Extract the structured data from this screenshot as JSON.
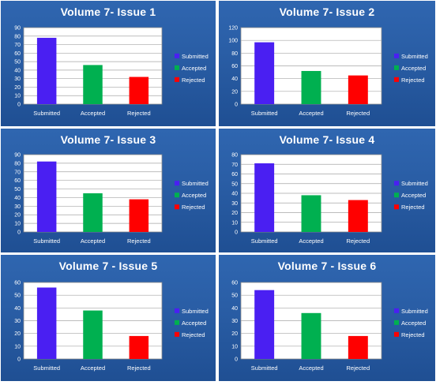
{
  "chart_data": [
    {
      "type": "bar",
      "title": "Volume 7- Issue 1",
      "categories": [
        "Submitted",
        "Accepted",
        "Rejected"
      ],
      "values": [
        78,
        46,
        32
      ],
      "ylim": [
        0,
        90
      ],
      "yticks": [
        0,
        10,
        20,
        30,
        40,
        50,
        60,
        70,
        80,
        90
      ],
      "colors": [
        "#4a1ff2",
        "#00b050",
        "#ff0000"
      ],
      "legend": [
        "Submitted",
        "Accepted",
        "Rejected"
      ],
      "legend_position": "right",
      "grid": true
    },
    {
      "type": "bar",
      "title": "Volume 7- Issue 2",
      "categories": [
        "Submitted",
        "Accepted",
        "Rejected"
      ],
      "values": [
        97,
        52,
        45
      ],
      "ylim": [
        0,
        120
      ],
      "yticks": [
        0,
        20,
        40,
        60,
        80,
        100,
        120
      ],
      "colors": [
        "#4a1ff2",
        "#00b050",
        "#ff0000"
      ],
      "legend": [
        "Submitted",
        "Accepted",
        "Rejected"
      ],
      "legend_position": "right",
      "grid": true
    },
    {
      "type": "bar",
      "title": "Volume 7- Issue 3",
      "categories": [
        "Submitted",
        "Accepted",
        "Rejected"
      ],
      "values": [
        82,
        45,
        38
      ],
      "ylim": [
        0,
        90
      ],
      "yticks": [
        0,
        10,
        20,
        30,
        40,
        50,
        60,
        70,
        80,
        90
      ],
      "colors": [
        "#4a1ff2",
        "#00b050",
        "#ff0000"
      ],
      "legend": [
        "Submitted",
        "Accepted",
        "Rejected"
      ],
      "legend_position": "right",
      "grid": true
    },
    {
      "type": "bar",
      "title": "Volume 7- Issue 4",
      "categories": [
        "Submitted",
        "Accepted",
        "Rejected"
      ],
      "values": [
        71,
        38,
        33
      ],
      "ylim": [
        0,
        80
      ],
      "yticks": [
        0,
        10,
        20,
        30,
        40,
        50,
        60,
        70,
        80
      ],
      "colors": [
        "#4a1ff2",
        "#00b050",
        "#ff0000"
      ],
      "legend": [
        "Submitted",
        "Accepted",
        "Rejected"
      ],
      "legend_position": "right",
      "grid": true
    },
    {
      "type": "bar",
      "title": "Volume 7 - Issue 5",
      "categories": [
        "Submitted",
        "Accepted",
        "Rejected"
      ],
      "values": [
        56,
        38,
        18
      ],
      "ylim": [
        0,
        60
      ],
      "yticks": [
        0,
        10,
        20,
        30,
        40,
        50,
        60
      ],
      "colors": [
        "#4a1ff2",
        "#00b050",
        "#ff0000"
      ],
      "legend": [
        "Submitted",
        "Accepted",
        "Rejected"
      ],
      "legend_position": "right",
      "grid": true
    },
    {
      "type": "bar",
      "title": "Volume 7 - Issue 6",
      "categories": [
        "Submitted",
        "Accepted",
        "Rejected"
      ],
      "values": [
        54,
        36,
        18
      ],
      "ylim": [
        0,
        60
      ],
      "yticks": [
        0,
        10,
        20,
        30,
        40,
        50,
        60
      ],
      "colors": [
        "#4a1ff2",
        "#00b050",
        "#ff0000"
      ],
      "legend": [
        "Submitted",
        "Accepted",
        "Rejected"
      ],
      "legend_position": "right",
      "grid": true
    }
  ]
}
